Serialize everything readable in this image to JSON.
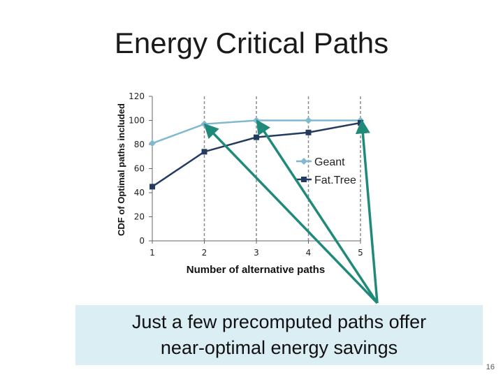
{
  "slide": {
    "title": "Energy Critical Paths",
    "callout_line1": "Just a few precomputed paths offer",
    "callout_line2": "near-optimal energy savings",
    "page_number": "16"
  },
  "chart_data": {
    "type": "line",
    "title": "",
    "xlabel": "Number of alternative paths",
    "ylabel": "CDF of Optimal paths included",
    "x": [
      1,
      2,
      3,
      4,
      5
    ],
    "y_ticks": [
      0,
      20,
      40,
      60,
      80,
      100,
      120
    ],
    "ylim": [
      0,
      120
    ],
    "grid": "vertical dashed",
    "legend_position": "right",
    "series": [
      {
        "name": "Geant",
        "values": [
          81,
          97,
          100,
          100,
          100
        ],
        "color": "#7fb8cf",
        "marker": "diamond"
      },
      {
        "name": "Fat.Tree",
        "values": [
          45,
          74,
          86,
          90,
          98
        ],
        "color": "#243a5e",
        "marker": "square"
      }
    ],
    "arrow_color": "#1f8a7a"
  }
}
